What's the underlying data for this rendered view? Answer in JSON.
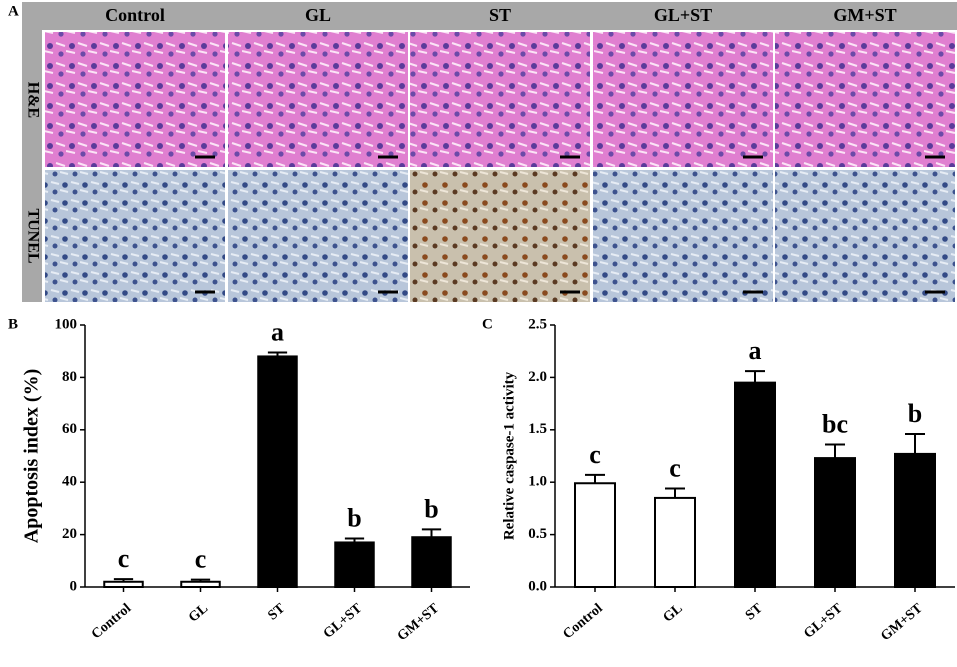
{
  "panel_labels": [
    "A",
    "B",
    "C"
  ],
  "image_grid": {
    "columns": [
      "Control",
      "GL",
      "ST",
      "GL+ST",
      "GM+ST"
    ],
    "rows": [
      "H&E",
      "TUNEL"
    ]
  },
  "chart_data": [
    {
      "type": "bar",
      "y_label": "Apoptosis index (%)",
      "categories": [
        "Control",
        "GL",
        "ST",
        "GL+ST",
        "GM+ST"
      ],
      "values": [
        2,
        2,
        88,
        17,
        19
      ],
      "errors": [
        1,
        0.8,
        1.5,
        1.5,
        3
      ],
      "annotations": [
        "c",
        "c",
        "a",
        "b",
        "b"
      ],
      "colors": [
        "#ffffff",
        "#ffffff",
        "#000000",
        "#000000",
        "#000000"
      ],
      "ylim": [
        0,
        100
      ],
      "yticks": [
        0,
        20,
        40,
        60,
        80,
        100
      ]
    },
    {
      "type": "bar",
      "y_label": "Relative caspase-1 activity",
      "categories": [
        "Control",
        "GL",
        "ST",
        "GL+ST",
        "GM+ST"
      ],
      "values": [
        0.99,
        0.85,
        1.95,
        1.23,
        1.27
      ],
      "errors": [
        0.08,
        0.09,
        0.11,
        0.13,
        0.19
      ],
      "annotations": [
        "c",
        "c",
        "a",
        "bc",
        "b"
      ],
      "colors": [
        "#ffffff",
        "#ffffff",
        "#000000",
        "#000000",
        "#000000"
      ],
      "ylim": [
        0,
        2.5
      ],
      "yticks": [
        {
          "value": 0,
          "label": "0.0"
        },
        0.5,
        {
          "value": 1,
          "label": "1.0"
        },
        1.5,
        {
          "value": 2,
          "label": "2.0"
        },
        2.5
      ]
    }
  ]
}
